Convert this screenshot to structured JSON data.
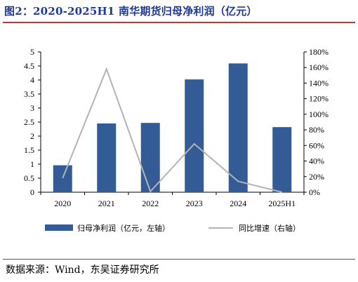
{
  "title": "图2：2020-2025H1 南华期货归母净利润（亿元）",
  "source": "数据来源：Wind，东吴证券研究所",
  "chart_data": {
    "type": "bar",
    "categories": [
      "2020",
      "2021",
      "2022",
      "2023",
      "2024",
      "2025H1"
    ],
    "series": [
      {
        "name": "归母净利润（亿元，左轴）",
        "type": "bar",
        "axis": "left",
        "color": "#335b96",
        "values": [
          0.96,
          2.45,
          2.47,
          4.02,
          4.59,
          2.32
        ]
      },
      {
        "name": "同比增速（右轴）",
        "type": "line",
        "axis": "right",
        "color": "#b3b3b3",
        "values": [
          18,
          158,
          1,
          62,
          14,
          0
        ]
      }
    ],
    "ylim_left": [
      0,
      5
    ],
    "yticks_left": [
      "0",
      "0.5",
      "1",
      "1.5",
      "2",
      "2.5",
      "3",
      "3.5",
      "4",
      "4.5",
      "5"
    ],
    "ylim_right": [
      0,
      180
    ],
    "yticks_right": [
      "0%",
      "20%",
      "40%",
      "60%",
      "80%",
      "100%",
      "120%",
      "140%",
      "160%",
      "180%"
    ],
    "legend_position": "bottom"
  }
}
